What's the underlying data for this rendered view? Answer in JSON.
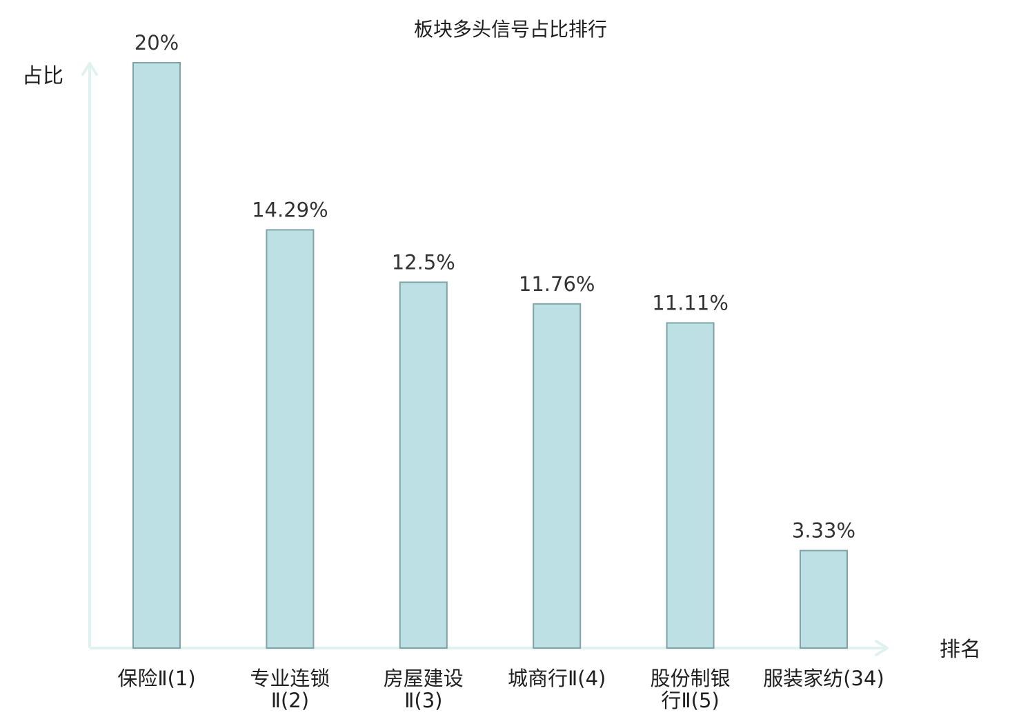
{
  "chart_data": {
    "type": "bar",
    "title": "板块多头信号占比排行",
    "xlabel": "排名",
    "ylabel": "占比",
    "ylim": [
      0,
      20
    ],
    "grid": false,
    "legend": "none",
    "categories": [
      [
        "保险Ⅱ(1)"
      ],
      [
        "专业连锁",
        "Ⅱ(2)"
      ],
      [
        "房屋建设",
        "Ⅱ(3)"
      ],
      [
        "城商行Ⅱ(4)"
      ],
      [
        "股份制银",
        "行Ⅱ(5)"
      ],
      [
        "服装家纺(34)"
      ]
    ],
    "values": [
      20,
      14.29,
      12.5,
      11.76,
      11.11,
      3.33
    ],
    "value_labels": [
      "20%",
      "14.29%",
      "12.5%",
      "11.76%",
      "11.11%",
      "3.33%"
    ],
    "highlight_index": 5
  },
  "colors": {
    "bar_fill": "#bce0e3",
    "bar_stroke": "#7fa3a6",
    "axis": "#dff2ef",
    "text": "#1f1f1f",
    "value_text": "#333333",
    "highlight_text": "#e0191e"
  }
}
